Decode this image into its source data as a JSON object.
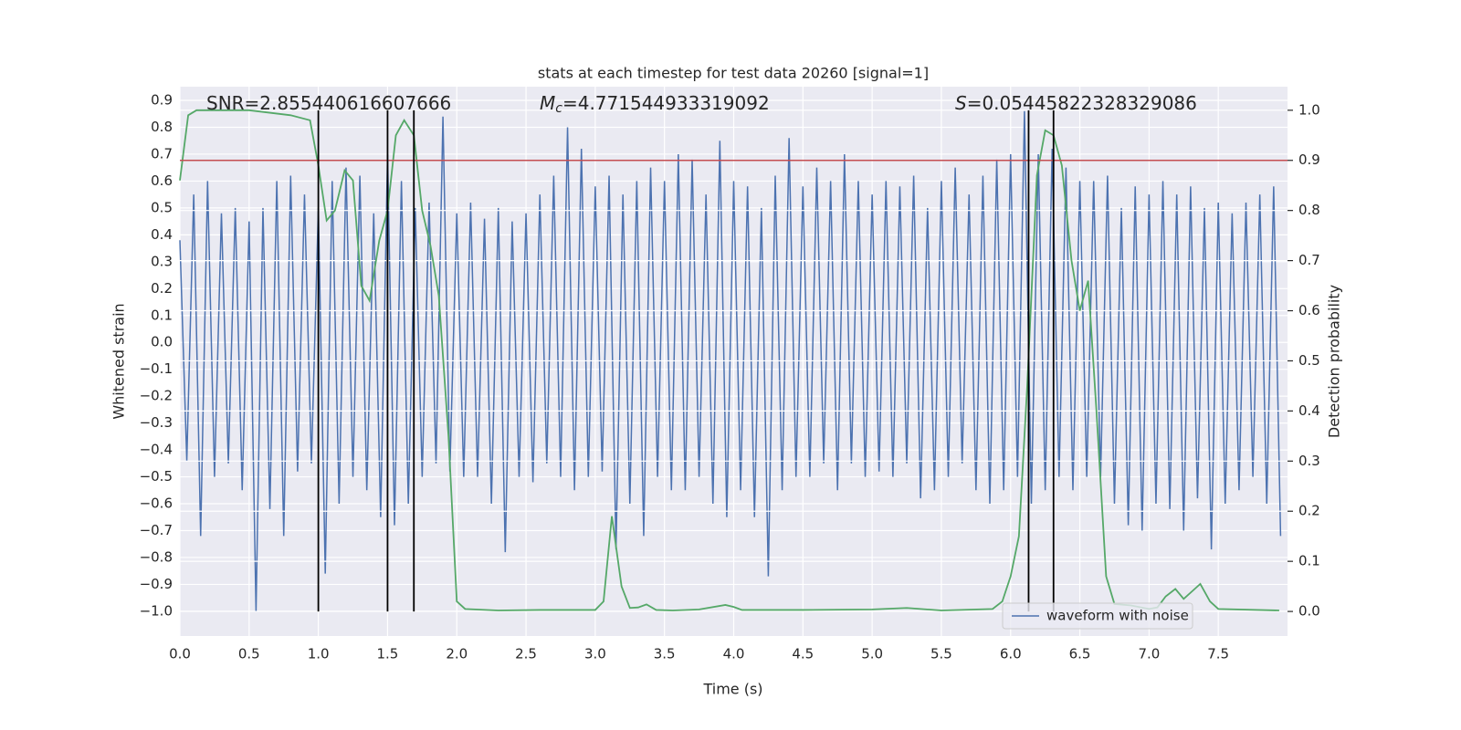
{
  "chart_data": {
    "type": "line",
    "title": "stats at each timestep for test data 20260 [signal=1]",
    "xlabel": "Time (s)",
    "ylabel": "Whitened strain",
    "y2label": "Detection probability",
    "grid": true,
    "legend": "lower right",
    "xlim": [
      0,
      8
    ],
    "xticks": [
      {
        "value": 0,
        "label": "0.0"
      },
      0.5,
      {
        "value": 1,
        "label": "1.0"
      },
      1.5,
      {
        "value": 2,
        "label": "2.0"
      },
      2.5,
      {
        "value": 3,
        "label": "3.0"
      },
      3.5,
      {
        "value": 4,
        "label": "4.0"
      },
      4.5,
      {
        "value": 5,
        "label": "5.0"
      },
      5.5,
      {
        "value": 6,
        "label": "6.0"
      },
      6.5,
      {
        "value": 7,
        "label": "7.0"
      },
      7.5
    ],
    "ylim": [
      -1.092,
      0.951
    ],
    "yticks": [
      {
        "value": -1.0,
        "label": "−1.0"
      },
      {
        "value": -0.9,
        "label": "−0.9"
      },
      {
        "value": -0.8,
        "label": "−0.8"
      },
      {
        "value": -0.7,
        "label": "−0.7"
      },
      {
        "value": -0.6,
        "label": "−0.6"
      },
      {
        "value": -0.5,
        "label": "−0.5"
      },
      {
        "value": -0.4,
        "label": "−0.4"
      },
      {
        "value": -0.3,
        "label": "−0.3"
      },
      {
        "value": -0.2,
        "label": "−0.2"
      },
      {
        "value": -0.1,
        "label": "−0.1"
      },
      {
        "value": 0,
        "label": "0.0"
      },
      0.1,
      0.2,
      0.3,
      0.4,
      0.5,
      0.6,
      0.7,
      0.8,
      0.9
    ],
    "y2lim": [
      -0.049,
      1.047
    ],
    "y2ticks": [
      {
        "value": 0,
        "label": "0.0"
      },
      0.1,
      0.2,
      0.3,
      0.4,
      0.5,
      0.6,
      0.7,
      0.8,
      0.9,
      {
        "value": 1,
        "label": "1.0"
      }
    ],
    "x": [
      0,
      0.05,
      0.1,
      0.15,
      0.2,
      0.25,
      0.3,
      0.35,
      0.4,
      0.45,
      0.5,
      0.55,
      0.6,
      0.65,
      0.7,
      0.75,
      0.8,
      0.85,
      0.9,
      0.95,
      1,
      1.05,
      1.1,
      1.15,
      1.2,
      1.25,
      1.3,
      1.35,
      1.4,
      1.45,
      1.5,
      1.55,
      1.6,
      1.65,
      1.7,
      1.75,
      1.8,
      1.85,
      1.9,
      1.95,
      2,
      2.05,
      2.1,
      2.15,
      2.2,
      2.25,
      2.3,
      2.35,
      2.4,
      2.45,
      2.5,
      2.55,
      2.6,
      2.65,
      2.7,
      2.75,
      2.8,
      2.85,
      2.9,
      2.95,
      3,
      3.05,
      3.1,
      3.15,
      3.2,
      3.25,
      3.3,
      3.35,
      3.4,
      3.45,
      3.5,
      3.55,
      3.6,
      3.65,
      3.7,
      3.75,
      3.8,
      3.85,
      3.9,
      3.95,
      4,
      4.05,
      4.1,
      4.15,
      4.2,
      4.25,
      4.3,
      4.35,
      4.4,
      4.45,
      4.5,
      4.55,
      4.6,
      4.65,
      4.7,
      4.75,
      4.8,
      4.85,
      4.9,
      4.95,
      5,
      5.05,
      5.1,
      5.15,
      5.2,
      5.25,
      5.3,
      5.35,
      5.4,
      5.45,
      5.5,
      5.55,
      5.6,
      5.65,
      5.7,
      5.75,
      5.8,
      5.85,
      5.9,
      5.95,
      6,
      6.05,
      6.1,
      6.15,
      6.2,
      6.25,
      6.3,
      6.35,
      6.4,
      6.45,
      6.5,
      6.55,
      6.6,
      6.65,
      6.7,
      6.75,
      6.8,
      6.85,
      6.9,
      6.95,
      7,
      7.05,
      7.1,
      7.15,
      7.2,
      7.25,
      7.3,
      7.35,
      7.4,
      7.45,
      7.5,
      7.55,
      7.6,
      7.65,
      7.7,
      7.75,
      7.8,
      7.85,
      7.9,
      7.95
    ],
    "series": [
      {
        "name": "waveform with noise",
        "color": "#4c72b0",
        "values": [
          0.38,
          -0.44,
          0.55,
          -0.72,
          0.6,
          -0.5,
          0.48,
          -0.45,
          0.5,
          -0.55,
          0.45,
          -1.0,
          0.5,
          -0.62,
          0.6,
          -0.72,
          0.62,
          -0.48,
          0.55,
          -0.45,
          0.5,
          -0.86,
          0.6,
          -0.6,
          0.65,
          -0.5,
          0.62,
          -0.55,
          0.48,
          -0.65,
          0.7,
          -0.68,
          0.6,
          -0.6,
          0.5,
          -0.5,
          0.52,
          -0.45,
          0.84,
          -0.48,
          0.48,
          -0.5,
          0.52,
          -0.5,
          0.46,
          -0.6,
          0.5,
          -0.78,
          0.45,
          -0.5,
          0.48,
          -0.52,
          0.55,
          -0.45,
          0.62,
          -0.5,
          0.8,
          -0.55,
          0.72,
          -0.5,
          0.58,
          -0.48,
          0.62,
          -0.77,
          0.55,
          -0.6,
          0.6,
          -0.72,
          0.65,
          -0.5,
          0.6,
          -0.55,
          0.7,
          -0.55,
          0.68,
          -0.5,
          0.55,
          -0.6,
          0.75,
          -0.65,
          0.6,
          -0.55,
          0.58,
          -0.65,
          0.5,
          -0.87,
          0.62,
          -0.55,
          0.76,
          -0.5,
          0.58,
          -0.5,
          0.65,
          -0.45,
          0.6,
          -0.55,
          0.7,
          -0.45,
          0.6,
          -0.5,
          0.55,
          -0.48,
          0.6,
          -0.5,
          0.58,
          -0.45,
          0.62,
          -0.58,
          0.5,
          -0.55,
          0.6,
          -0.5,
          0.65,
          -0.45,
          0.55,
          -0.55,
          0.62,
          -0.6,
          0.68,
          -0.55,
          0.7,
          -0.5,
          0.86,
          -0.6,
          0.7,
          -0.55,
          0.72,
          -0.5,
          0.65,
          -0.55,
          0.6,
          -0.5,
          0.6,
          -0.5,
          0.62,
          -0.6,
          0.5,
          -0.68,
          0.58,
          -0.7,
          0.55,
          -0.6,
          0.6,
          -0.62,
          0.55,
          -0.7,
          0.58,
          -0.58,
          0.5,
          -0.77,
          0.52,
          -0.6,
          0.48,
          -0.55,
          0.52,
          -0.5,
          0.55,
          -0.6,
          0.58,
          -0.72
        ]
      },
      {
        "color": "#55a868",
        "axis": "y2",
        "x": [
          0,
          0.06,
          0.12,
          0.5,
          0.8,
          0.94,
          1.0,
          1.06,
          1.12,
          1.19,
          1.25,
          1.31,
          1.37,
          1.44,
          1.5,
          1.56,
          1.62,
          1.69,
          1.75,
          1.81,
          1.87,
          1.94,
          2.0,
          2.06,
          2.3,
          2.6,
          3.0,
          3.06,
          3.12,
          3.19,
          3.25,
          3.31,
          3.37,
          3.44,
          3.56,
          3.75,
          3.94,
          4.0,
          4.06,
          4.5,
          5.0,
          5.25,
          5.5,
          5.87,
          5.94,
          6.0,
          6.06,
          6.12,
          6.19,
          6.25,
          6.31,
          6.37,
          6.44,
          6.5,
          6.56,
          6.62,
          6.69,
          6.75,
          6.87,
          7.0,
          7.06,
          7.12,
          7.19,
          7.25,
          7.31,
          7.37,
          7.44,
          7.5,
          7.94
        ],
        "values": [
          0.86,
          0.99,
          1.0,
          1.0,
          0.99,
          0.98,
          0.89,
          0.78,
          0.8,
          0.88,
          0.86,
          0.65,
          0.62,
          0.74,
          0.8,
          0.95,
          0.98,
          0.95,
          0.8,
          0.73,
          0.63,
          0.35,
          0.02,
          0.005,
          0.002,
          0.003,
          0.003,
          0.02,
          0.19,
          0.05,
          0.007,
          0.008,
          0.014,
          0.003,
          0.002,
          0.004,
          0.013,
          0.009,
          0.003,
          0.003,
          0.004,
          0.007,
          0.002,
          0.005,
          0.02,
          0.07,
          0.15,
          0.45,
          0.87,
          0.96,
          0.95,
          0.89,
          0.7,
          0.6,
          0.66,
          0.4,
          0.07,
          0.015,
          0.012,
          0.005,
          0.008,
          0.03,
          0.045,
          0.025,
          0.04,
          0.055,
          0.02,
          0.005,
          0.002
        ]
      }
    ],
    "threshold": {
      "value": 0.9,
      "axis": "y2",
      "color": "#c44e52"
    },
    "vlines": {
      "x": [
        1.0,
        1.5,
        1.69,
        6.13,
        6.31
      ],
      "ymin": 0,
      "ymax": 1,
      "axis": "y2",
      "color": "#000000"
    },
    "annotations": [
      {
        "text": "SNR=2.855440616607666"
      },
      {
        "symbol": "M",
        "sub": "c",
        "text": "=4.771544933319092"
      },
      {
        "symbol": "S",
        "text": "=0.05445822328329086"
      }
    ]
  }
}
